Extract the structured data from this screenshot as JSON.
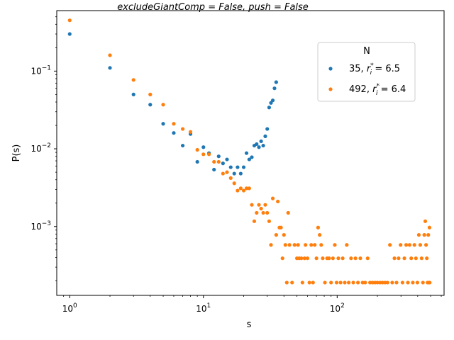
{
  "chart_data": {
    "type": "scatter",
    "title": "excludeGiantComp = False, push = False",
    "xlabel": "s",
    "ylabel": "P(s)",
    "xscale": "log",
    "yscale": "log",
    "xlim": [
      0.8,
      630
    ],
    "ylim": [
      0.00013,
      0.6
    ],
    "x_ticks": [
      {
        "value": 1,
        "base": "10",
        "exp": "0"
      },
      {
        "value": 10,
        "base": "10",
        "exp": "1"
      },
      {
        "value": 100,
        "base": "10",
        "exp": "2"
      }
    ],
    "y_ticks": [
      {
        "value": 0.001,
        "base": "10",
        "exp": "−3"
      },
      {
        "value": 0.01,
        "base": "10",
        "exp": "−2"
      },
      {
        "value": 0.1,
        "base": "10",
        "exp": "−1"
      }
    ],
    "grid": false,
    "legend": {
      "title": "N",
      "placement": "upper right",
      "entries": [
        {
          "prefix": "35, ",
          "r_symbol": "r",
          "sub": "i",
          "sup": "*",
          "value": " = 6.5"
        },
        {
          "prefix": "492, ",
          "r_symbol": "r",
          "sub": "i",
          "sup": "*",
          "value": " = 6.4"
        }
      ]
    },
    "series": [
      {
        "name": "35, r_i* = 6.5",
        "color": "#1f77b4",
        "points": [
          [
            1,
            0.3
          ],
          [
            2,
            0.11
          ],
          [
            3,
            0.05
          ],
          [
            4,
            0.037
          ],
          [
            5,
            0.021
          ],
          [
            6,
            0.016
          ],
          [
            7,
            0.011
          ],
          [
            8,
            0.0155
          ],
          [
            9,
            0.0068
          ],
          [
            10,
            0.0105
          ],
          [
            11,
            0.0088
          ],
          [
            12,
            0.0054
          ],
          [
            13,
            0.008
          ],
          [
            14,
            0.0065
          ],
          [
            15,
            0.0073
          ],
          [
            16,
            0.0058
          ],
          [
            17,
            0.0048
          ],
          [
            18,
            0.0058
          ],
          [
            19,
            0.0048
          ],
          [
            20,
            0.0058
          ],
          [
            21,
            0.0088
          ],
          [
            22,
            0.0073
          ],
          [
            23,
            0.0078
          ],
          [
            24,
            0.011
          ],
          [
            25,
            0.0115
          ],
          [
            26,
            0.0105
          ],
          [
            27,
            0.0125
          ],
          [
            28,
            0.011
          ],
          [
            29,
            0.0145
          ],
          [
            30,
            0.018
          ],
          [
            31,
            0.034
          ],
          [
            32,
            0.039
          ],
          [
            33,
            0.042
          ],
          [
            34,
            0.06
          ],
          [
            35,
            0.072
          ]
        ]
      },
      {
        "name": "492, r_i* = 6.4",
        "color": "#ff7f0e",
        "points": [
          [
            1,
            0.45
          ],
          [
            2,
            0.16
          ],
          [
            3,
            0.077
          ],
          [
            4,
            0.05
          ],
          [
            5,
            0.037
          ],
          [
            6,
            0.021
          ],
          [
            7,
            0.018
          ],
          [
            8,
            0.0165
          ],
          [
            9,
            0.0097
          ],
          [
            10,
            0.0085
          ],
          [
            11,
            0.0085
          ],
          [
            12,
            0.0068
          ],
          [
            13,
            0.0068
          ],
          [
            14,
            0.0048
          ],
          [
            15,
            0.005
          ],
          [
            16,
            0.0042
          ],
          [
            17,
            0.0036
          ],
          [
            18,
            0.0029
          ],
          [
            19,
            0.0031
          ],
          [
            20,
            0.0029
          ],
          [
            21,
            0.0031
          ],
          [
            22,
            0.0031
          ],
          [
            23,
            0.0019
          ],
          [
            24,
            0.00117
          ],
          [
            25,
            0.0015
          ],
          [
            26,
            0.0019
          ],
          [
            27,
            0.0017
          ],
          [
            28,
            0.0015
          ],
          [
            29,
            0.0019
          ],
          [
            30,
            0.0015
          ],
          [
            31,
            0.00117
          ],
          [
            32,
            0.00058
          ],
          [
            33,
            0.0023
          ],
          [
            35,
            0.00078
          ],
          [
            36,
            0.0021
          ],
          [
            37,
            0.00097
          ],
          [
            38,
            0.00097
          ],
          [
            39,
            0.00039
          ],
          [
            40,
            0.00078
          ],
          [
            41,
            0.00058
          ],
          [
            42,
            0.00019
          ],
          [
            43,
            0.0015
          ],
          [
            44,
            0.00058
          ],
          [
            46,
            0.00019
          ],
          [
            48,
            0.00058
          ],
          [
            50,
            0.00039
          ],
          [
            51,
            0.00058
          ],
          [
            52,
            0.00039
          ],
          [
            54,
            0.00039
          ],
          [
            55,
            0.00019
          ],
          [
            57,
            0.00039
          ],
          [
            58,
            0.00058
          ],
          [
            60,
            0.00039
          ],
          [
            62,
            0.00019
          ],
          [
            64,
            0.00058
          ],
          [
            66,
            0.00019
          ],
          [
            68,
            0.00058
          ],
          [
            70,
            0.00039
          ],
          [
            72,
            0.00097
          ],
          [
            74,
            0.00078
          ],
          [
            76,
            0.00058
          ],
          [
            78,
            0.00039
          ],
          [
            81,
            0.00019
          ],
          [
            84,
            0.00039
          ],
          [
            87,
            0.00039
          ],
          [
            90,
            0.00019
          ],
          [
            93,
            0.00039
          ],
          [
            96,
            0.00058
          ],
          [
            99,
            0.00019
          ],
          [
            102,
            0.00039
          ],
          [
            106,
            0.00019
          ],
          [
            110,
            0.00039
          ],
          [
            114,
            0.00019
          ],
          [
            118,
            0.00058
          ],
          [
            122,
            0.00019
          ],
          [
            127,
            0.00039
          ],
          [
            132,
            0.00019
          ],
          [
            137,
            0.00039
          ],
          [
            143,
            0.00019
          ],
          [
            149,
            0.00039
          ],
          [
            155,
            0.00019
          ],
          [
            162,
            0.00019
          ],
          [
            169,
            0.00039
          ],
          [
            176,
            0.00019
          ],
          [
            184,
            0.00019
          ],
          [
            192,
            0.00019
          ],
          [
            200,
            0.00019
          ],
          [
            209,
            0.00019
          ],
          [
            218,
            0.00019
          ],
          [
            228,
            0.00019
          ],
          [
            238,
            0.00019
          ],
          [
            248,
            0.00058
          ],
          [
            258,
            0.00019
          ],
          [
            268,
            0.00039
          ],
          [
            278,
            0.00019
          ],
          [
            288,
            0.00039
          ],
          [
            298,
            0.00058
          ],
          [
            308,
            0.00019
          ],
          [
            318,
            0.00039
          ],
          [
            328,
            0.00058
          ],
          [
            338,
            0.00019
          ],
          [
            348,
            0.00058
          ],
          [
            358,
            0.00039
          ],
          [
            368,
            0.00019
          ],
          [
            378,
            0.00058
          ],
          [
            388,
            0.00039
          ],
          [
            398,
            0.00019
          ],
          [
            408,
            0.00078
          ],
          [
            418,
            0.00058
          ],
          [
            428,
            0.00039
          ],
          [
            438,
            0.00019
          ],
          [
            448,
            0.00078
          ],
          [
            456,
            0.00117
          ],
          [
            462,
            0.00058
          ],
          [
            468,
            0.00039
          ],
          [
            474,
            0.00019
          ],
          [
            480,
            0.00078
          ],
          [
            486,
            0.00019
          ],
          [
            490,
            0.00097
          ],
          [
            492,
            0.00019
          ]
        ]
      }
    ]
  }
}
